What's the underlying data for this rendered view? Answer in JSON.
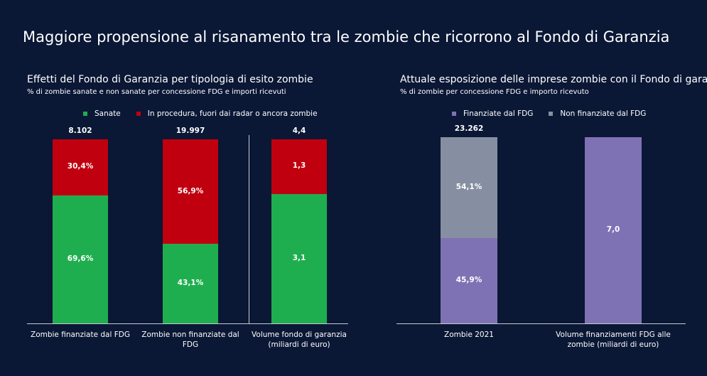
{
  "title": "Maggiore propensione al risanamento tra le zombie che ricorrono al Fondo di Garanzia",
  "chart_data": [
    {
      "type": "bar",
      "stacked": true,
      "title": "Effetti del Fondo di Garanzia per tipologia di esito zombie",
      "subtitle": "% di zombie sanate e non sanate per concessione FDG e importi ricevuti",
      "categories": [
        "Zombie finanziate dal FDG",
        "Zombie non finanziate dal FDG",
        "Volume fondo di garanzia (miliardi di euro)"
      ],
      "series": [
        {
          "name": "Sanate",
          "color": "#1fae4f",
          "values": [
            69.6,
            43.1,
            3.1
          ],
          "value_labels": [
            "69,6%",
            "43,1%",
            "3,1"
          ]
        },
        {
          "name": "In procedura, fuori dai radar o ancora zombie",
          "color": "#c0000f",
          "values": [
            30.4,
            56.9,
            1.3
          ],
          "value_labels": [
            "30,4%",
            "56,9%",
            "1,3"
          ]
        }
      ],
      "totals": [
        {
          "value": 8102,
          "label": "8.102"
        },
        {
          "value": 19997,
          "label": "19.997"
        },
        {
          "value": 4.4,
          "label": "4,4"
        }
      ]
    },
    {
      "type": "bar",
      "stacked": true,
      "title": "Attuale esposizione delle imprese zombie con il Fondo di garanzia",
      "subtitle": "% di zombie per concessione FDG e importo ricevuto",
      "categories": [
        "Zombie 2021",
        "Volume finanziamenti FDG alle zombie (miliardi di euro)"
      ],
      "series": [
        {
          "name": "Finanziate dal FDG",
          "color": "#7f72b4",
          "values": [
            45.9,
            7.0
          ],
          "value_labels": [
            "45,9%",
            "7,0"
          ]
        },
        {
          "name": "Non finanziate dal FDG",
          "color": "#868ea1",
          "values": [
            54.1,
            null
          ],
          "value_labels": [
            "54,1%",
            null
          ]
        }
      ],
      "totals": [
        {
          "value": 23262,
          "label": "23.262"
        },
        null
      ]
    }
  ]
}
